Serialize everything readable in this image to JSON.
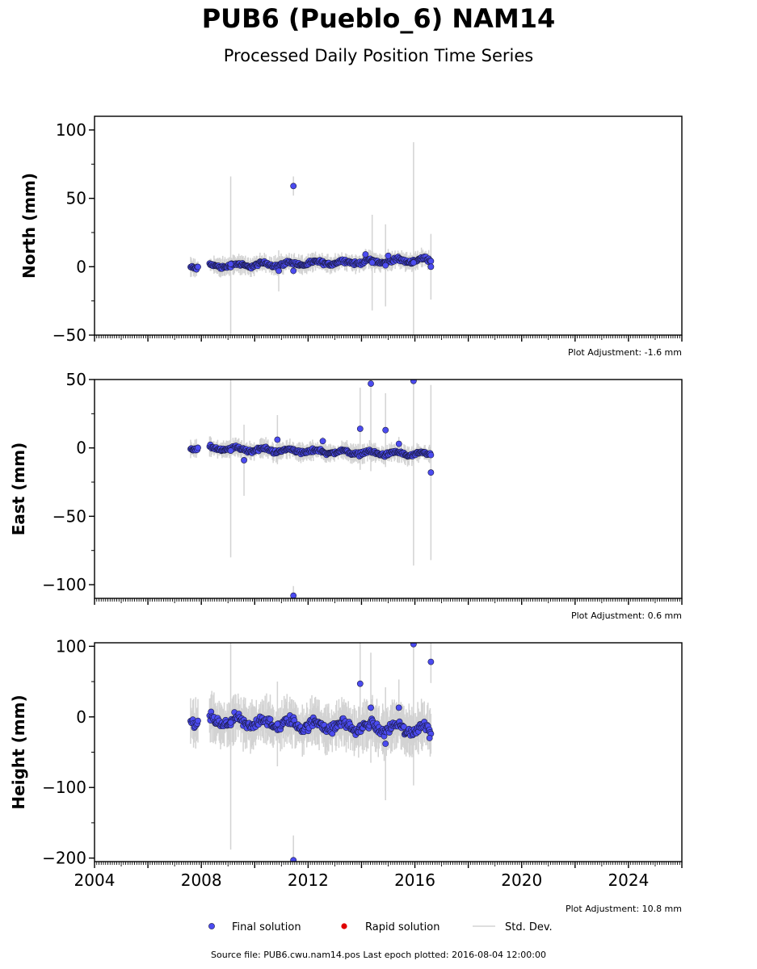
{
  "header": {
    "title": "PUB6 (Pueblo_6) NAM14",
    "subtitle": "Processed Daily Position Time Series"
  },
  "footer": {
    "source": "Source file: PUB6.cwu.nam14.pos  Last epoch plotted: 2016-08-04 12:00:00"
  },
  "legend": {
    "final": "Final solution",
    "rapid": "Rapid solution",
    "std": "Std. Dev."
  },
  "colors": {
    "final": "#4b4bf0",
    "final_edge": "#1a1a40",
    "rapid": "#e00000",
    "std": "#d3d3d3"
  },
  "chart_data": [
    {
      "type": "scatter",
      "ylabel": "North (mm)",
      "adjustment": "Plot Adjustment: -1.6 mm",
      "xlim": [
        2004,
        2026
      ],
      "ylim": [
        -50,
        110
      ],
      "yticks": [
        "100",
        "50",
        "0",
        "−50"
      ],
      "ytick_values": [
        100,
        50,
        0,
        -50
      ],
      "trend": {
        "start": [
          2007.6,
          0
        ],
        "end": [
          2016.6,
          5
        ],
        "spread": 2
      },
      "outliers": [
        {
          "x": 2011.45,
          "y": 59,
          "err": 7
        },
        {
          "x": 2009.1,
          "y": 2,
          "err": 64
        },
        {
          "x": 2015.95,
          "y": 3,
          "err": 88
        },
        {
          "x": 2014.15,
          "y": 9,
          "err": 4
        },
        {
          "x": 2011.45,
          "y": -3,
          "err": 3
        },
        {
          "x": 2010.9,
          "y": -3,
          "err": 15
        },
        {
          "x": 2014.4,
          "y": 3,
          "err": 35
        },
        {
          "x": 2014.9,
          "y": 1,
          "err": 30
        },
        {
          "x": 2016.6,
          "y": 0,
          "err": 24
        },
        {
          "x": 2015.0,
          "y": 8,
          "err": 5
        }
      ]
    },
    {
      "type": "scatter",
      "ylabel": "East (mm)",
      "adjustment": "Plot Adjustment: 0.6 mm",
      "xlim": [
        2004,
        2026
      ],
      "ylim": [
        -110,
        50
      ],
      "yticks": [
        "50",
        "0",
        "−50",
        "−100"
      ],
      "ytick_values": [
        50,
        0,
        -50,
        -100
      ],
      "trend": {
        "start": [
          2007.6,
          0
        ],
        "end": [
          2016.6,
          -5
        ],
        "spread": 2
      },
      "outliers": [
        {
          "x": 2011.45,
          "y": -108,
          "err": 7
        },
        {
          "x": 2009.1,
          "y": -2,
          "err": 78
        },
        {
          "x": 2015.95,
          "y": 49,
          "err": 135
        },
        {
          "x": 2014.35,
          "y": 47,
          "err": 64
        },
        {
          "x": 2013.95,
          "y": 14,
          "err": 30
        },
        {
          "x": 2014.9,
          "y": 13,
          "err": 27
        },
        {
          "x": 2016.6,
          "y": -18,
          "err": 64
        },
        {
          "x": 2010.85,
          "y": 6,
          "err": 18
        },
        {
          "x": 2009.6,
          "y": -9,
          "err": 26
        },
        {
          "x": 2012.55,
          "y": 5,
          "err": 3
        },
        {
          "x": 2015.4,
          "y": 3,
          "err": 5
        }
      ]
    },
    {
      "type": "scatter",
      "ylabel": "Height (mm)",
      "adjustment": "Plot Adjustment: 10.8 mm",
      "xlim": [
        2004,
        2026
      ],
      "ylim": [
        -205,
        105
      ],
      "yticks": [
        "100",
        "0",
        "−100",
        "−200"
      ],
      "ytick_values": [
        100,
        0,
        -100,
        -200
      ],
      "trend": {
        "start": [
          2007.6,
          -5
        ],
        "end": [
          2016.6,
          -18
        ],
        "spread": 10
      },
      "outliers": [
        {
          "x": 2011.45,
          "y": -203,
          "err": 35
        },
        {
          "x": 2009.1,
          "y": -8,
          "err": 180
        },
        {
          "x": 2015.95,
          "y": 103,
          "err": 200
        },
        {
          "x": 2013.95,
          "y": 47,
          "err": 60
        },
        {
          "x": 2014.35,
          "y": 13,
          "err": 78
        },
        {
          "x": 2016.6,
          "y": 78,
          "err": 30
        },
        {
          "x": 2014.9,
          "y": -38,
          "err": 80
        },
        {
          "x": 2015.4,
          "y": 13,
          "err": 40
        },
        {
          "x": 2010.85,
          "y": -10,
          "err": 60
        },
        {
          "x": 2016.55,
          "y": -30,
          "err": 10
        }
      ]
    }
  ],
  "x_axis": {
    "tick_labels": [
      "2004",
      "2008",
      "2012",
      "2016",
      "2020",
      "2024"
    ],
    "tick_values": [
      2004,
      2008,
      2012,
      2016,
      2020,
      2024
    ]
  }
}
